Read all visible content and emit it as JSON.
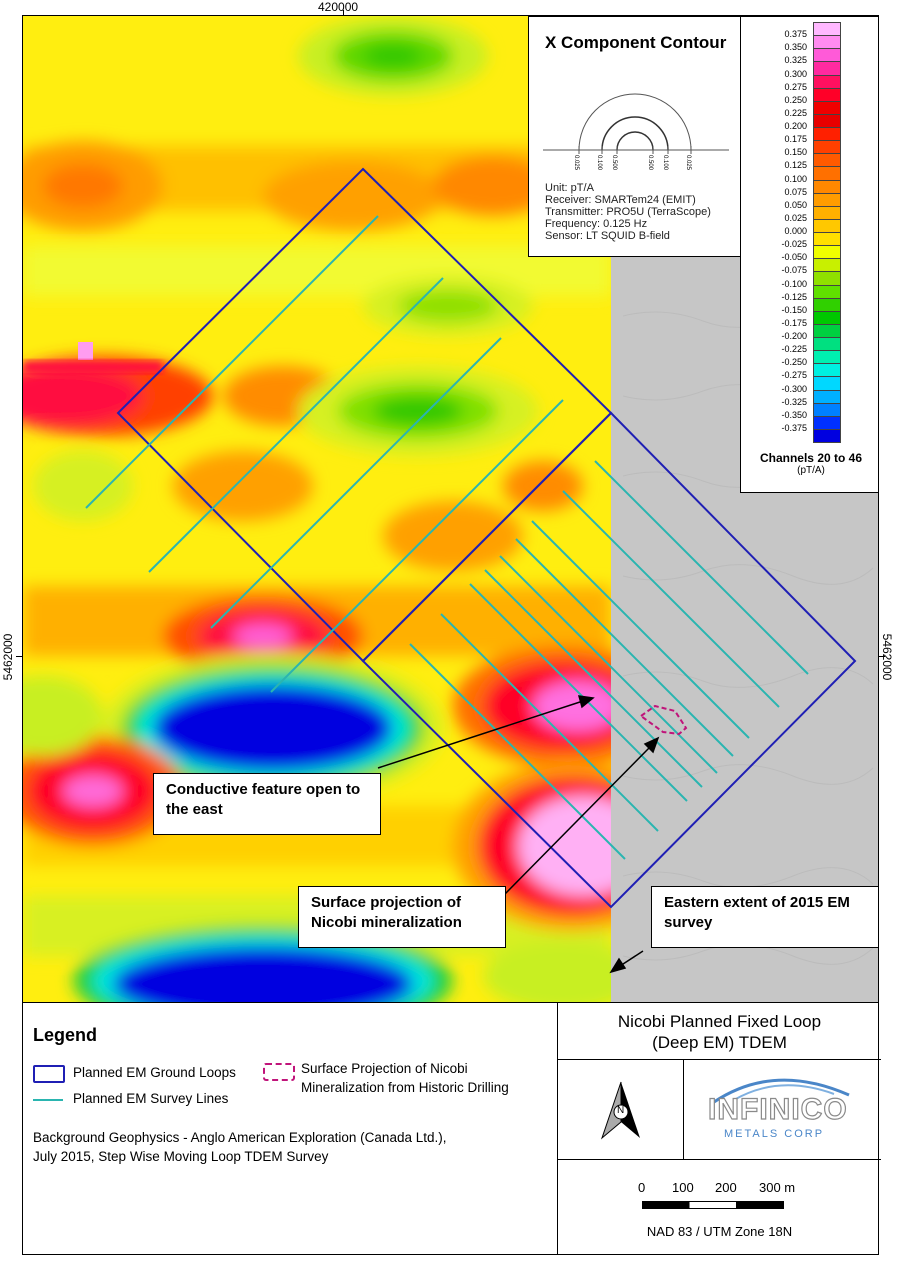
{
  "map": {
    "coord_top": "420000",
    "coord_left": "5462000",
    "coord_right": "5462000",
    "callouts": [
      {
        "text": "Conductive feature open to the east"
      },
      {
        "text": "Surface projection of Nicobi mineralization"
      },
      {
        "text": "Eastern extent of 2015 EM survey"
      }
    ],
    "info": {
      "title": "X Component Contour",
      "ticks": [
        "0.025",
        "0.100",
        "0.500",
        "0.500",
        "0.100",
        "0.025"
      ],
      "lines": [
        "Unit: pT/A",
        "Receiver: SMARTem24 (EMIT)",
        "Transmitter: PRO5U (TerraScope)",
        "Frequency: 0.125 Hz",
        "Sensor: LT SQUID B-field"
      ]
    },
    "colorbar": {
      "labels": [
        "0.375",
        "0.350",
        "0.325",
        "0.300",
        "0.275",
        "0.250",
        "0.225",
        "0.200",
        "0.175",
        "0.150",
        "0.125",
        "0.100",
        "0.075",
        "0.050",
        "0.025",
        "0.000",
        "-0.025",
        "-0.050",
        "-0.075",
        "-0.100",
        "-0.125",
        "-0.150",
        "-0.175",
        "-0.200",
        "-0.225",
        "-0.250",
        "-0.275",
        "-0.300",
        "-0.325",
        "-0.350",
        "-0.375"
      ],
      "colors": [
        "#ffb8ff",
        "#ff8cf0",
        "#ff5ad8",
        "#ff2aa0",
        "#ff1060",
        "#ff0028",
        "#f00000",
        "#e80000",
        "#ff2000",
        "#ff4000",
        "#ff5a00",
        "#ff7000",
        "#ff8800",
        "#ff9c00",
        "#ffb000",
        "#ffc800",
        "#ffe000",
        "#f0ff00",
        "#c8f000",
        "#90e000",
        "#60e000",
        "#30d000",
        "#00c800",
        "#00d040",
        "#00e080",
        "#00f0b0",
        "#00f0e0",
        "#00d8ff",
        "#00b0ff",
        "#0080ff",
        "#0030ff",
        "#0000e0"
      ],
      "title": "Channels 20 to 46",
      "unit": "(pT/A)"
    }
  },
  "legend": {
    "title": "Legend",
    "loops_label": "Planned EM Ground Loops",
    "lines_label": "Planned EM Survey Lines",
    "mineral_label_1": "Surface Projection of Nicobi",
    "mineral_label_2": "Mineralization from Historic Drilling",
    "source_1": "Background Geophysics - Anglo American Exploration (Canada Ltd.),",
    "source_2": "July 2015, Step Wise Moving Loop TDEM Survey",
    "loop_color": "#1f1fb4",
    "line_color": "#2ab5b0",
    "mineral_color": "#c0147a"
  },
  "titleblock": {
    "title_1": "Nicobi Planned Fixed Loop",
    "title_2": "(Deep EM) TDEM",
    "north_letter": "N",
    "logo_main": "INFINICO",
    "logo_sub": "METALS CORP",
    "scale_labels": [
      "0",
      "100",
      "200",
      "300 m"
    ],
    "projection": "NAD 83 / UTM Zone 18N"
  }
}
